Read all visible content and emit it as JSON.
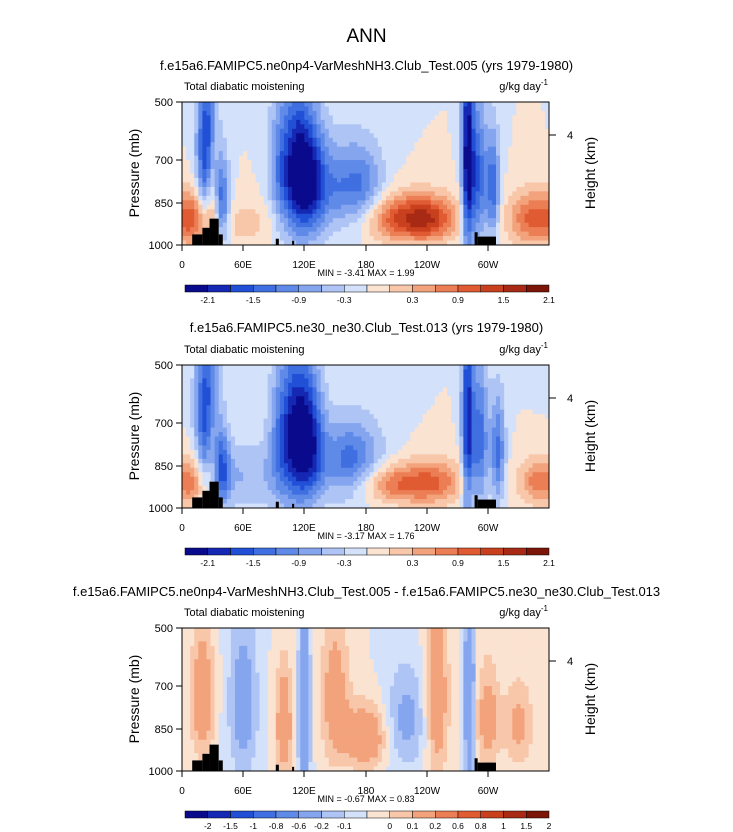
{
  "figure_title": "ANN",
  "chart_data": [
    {
      "type": "heatmap",
      "title": "f.e15a6.FAMIPC5.ne0np4-VarMeshNH3.Club_Test.005 (yrs 1979-1980)",
      "left_label": "Total diabatic moistening",
      "units_base": "g/kg day",
      "units_exp": "-1",
      "ylabel": "Pressure (mb)",
      "ylabel_right": "Height (km)",
      "right_ticks": [
        "4"
      ],
      "y_ticks": [
        "500",
        "700",
        "850",
        "1000"
      ],
      "x_ticks": [
        "0",
        "60E",
        "120E",
        "180",
        "120W",
        "60W"
      ],
      "minmax": "MIN =  -3.41  MAX =  1.99",
      "colorbar_labels": [
        "-2.1",
        "-1.5",
        "-0.9",
        "-0.3",
        "0.3",
        "0.9",
        "1.5",
        "2.1"
      ],
      "colorbar_levels": [
        -2.4,
        -2.1,
        -1.8,
        -1.5,
        -1.2,
        -0.9,
        -0.6,
        -0.3,
        0,
        0.3,
        0.6,
        0.9,
        1.2,
        1.5,
        1.8,
        2.1,
        2.4
      ],
      "xlim": [
        0,
        360
      ],
      "ylim": [
        1000,
        500
      ],
      "features": [
        {
          "lon": 25,
          "p": 650,
          "w": 7,
          "h": 200,
          "v": -2.2
        },
        {
          "lon": 30,
          "p": 780,
          "w": 5,
          "h": 160,
          "v": 1.6
        },
        {
          "lon": 38,
          "p": 820,
          "w": 6,
          "h": 120,
          "v": -1.6
        },
        {
          "lon": 15,
          "p": 880,
          "w": 10,
          "h": 90,
          "v": 0.9
        },
        {
          "lon": 60,
          "p": 900,
          "w": 40,
          "h": 80,
          "v": 0.4
        },
        {
          "lon": 100,
          "p": 700,
          "w": 10,
          "h": 180,
          "v": -1.4
        },
        {
          "lon": 115,
          "p": 700,
          "w": 8,
          "h": 180,
          "v": -1.6
        },
        {
          "lon": 128,
          "p": 720,
          "w": 9,
          "h": 160,
          "v": -1.4
        },
        {
          "lon": 150,
          "p": 760,
          "w": 22,
          "h": 120,
          "v": -1.1
        },
        {
          "lon": 180,
          "p": 760,
          "w": 14,
          "h": 110,
          "v": -0.8
        },
        {
          "lon": 215,
          "p": 880,
          "w": 28,
          "h": 70,
          "v": 1.5
        },
        {
          "lon": 245,
          "p": 880,
          "w": 18,
          "h": 70,
          "v": 1.0
        },
        {
          "lon": 280,
          "p": 650,
          "w": 4,
          "h": 260,
          "v": -2.2
        },
        {
          "lon": 290,
          "p": 720,
          "w": 6,
          "h": 180,
          "v": -1.5
        },
        {
          "lon": 305,
          "p": 760,
          "w": 5,
          "h": 140,
          "v": -1.4
        },
        {
          "lon": 345,
          "p": 880,
          "w": 18,
          "h": 80,
          "v": 1.3
        }
      ],
      "topography": [
        {
          "lon0": 10,
          "lon1": 20,
          "p": 950
        },
        {
          "lon0": 20,
          "lon1": 27,
          "p": 920
        },
        {
          "lon0": 27,
          "lon1": 36,
          "p": 880
        },
        {
          "lon0": 36,
          "lon1": 40,
          "p": 950
        },
        {
          "lon0": 92,
          "lon1": 95,
          "p": 970
        },
        {
          "lon0": 108,
          "lon1": 110,
          "p": 980
        },
        {
          "lon0": 287,
          "lon1": 290,
          "p": 940
        },
        {
          "lon0": 290,
          "lon1": 308,
          "p": 960
        }
      ]
    },
    {
      "type": "heatmap",
      "title": "f.e15a6.FAMIPC5.ne30_ne30.Club_Test.013 (yrs 1979-1980)",
      "left_label": "Total diabatic moistening",
      "units_base": "g/kg day",
      "units_exp": "-1",
      "ylabel": "Pressure (mb)",
      "ylabel_right": "Height (km)",
      "right_ticks": [
        "4"
      ],
      "y_ticks": [
        "500",
        "700",
        "850",
        "1000"
      ],
      "x_ticks": [
        "0",
        "60E",
        "120E",
        "180",
        "120W",
        "60W"
      ],
      "minmax": "MIN =  -3.17  MAX =  1.76",
      "colorbar_labels": [
        "-2.1",
        "-1.5",
        "-0.9",
        "-0.3",
        "0.3",
        "0.9",
        "1.5",
        "2.1"
      ],
      "colorbar_levels": [
        -2.4,
        -2.1,
        -1.8,
        -1.5,
        -1.2,
        -0.9,
        -0.6,
        -0.3,
        0,
        0.3,
        0.6,
        0.9,
        1.2,
        1.5,
        1.8,
        2.1,
        2.4
      ],
      "xlim": [
        0,
        360
      ],
      "ylim": [
        1000,
        500
      ],
      "features": [
        {
          "lon": 25,
          "p": 640,
          "w": 8,
          "h": 200,
          "v": -2.0
        },
        {
          "lon": 30,
          "p": 780,
          "w": 5,
          "h": 160,
          "v": 1.2
        },
        {
          "lon": 38,
          "p": 830,
          "w": 6,
          "h": 110,
          "v": -1.3
        },
        {
          "lon": 15,
          "p": 880,
          "w": 10,
          "h": 90,
          "v": 1.0
        },
        {
          "lon": 60,
          "p": 860,
          "w": 30,
          "h": 100,
          "v": -0.6
        },
        {
          "lon": 100,
          "p": 700,
          "w": 10,
          "h": 180,
          "v": -1.3
        },
        {
          "lon": 115,
          "p": 700,
          "w": 9,
          "h": 180,
          "v": -1.7
        },
        {
          "lon": 128,
          "p": 720,
          "w": 9,
          "h": 160,
          "v": -1.4
        },
        {
          "lon": 165,
          "p": 800,
          "w": 22,
          "h": 110,
          "v": -1.4
        },
        {
          "lon": 210,
          "p": 890,
          "w": 30,
          "h": 60,
          "v": 1.2
        },
        {
          "lon": 250,
          "p": 880,
          "w": 20,
          "h": 70,
          "v": 0.8
        },
        {
          "lon": 280,
          "p": 650,
          "w": 4,
          "h": 260,
          "v": -1.9
        },
        {
          "lon": 292,
          "p": 720,
          "w": 6,
          "h": 180,
          "v": -1.4
        },
        {
          "lon": 310,
          "p": 760,
          "w": 5,
          "h": 140,
          "v": -1.3
        },
        {
          "lon": 350,
          "p": 880,
          "w": 14,
          "h": 70,
          "v": 1.1
        }
      ],
      "topography": [
        {
          "lon0": 10,
          "lon1": 20,
          "p": 950
        },
        {
          "lon0": 20,
          "lon1": 27,
          "p": 920
        },
        {
          "lon0": 27,
          "lon1": 36,
          "p": 880
        },
        {
          "lon0": 36,
          "lon1": 40,
          "p": 950
        },
        {
          "lon0": 92,
          "lon1": 95,
          "p": 970
        },
        {
          "lon0": 108,
          "lon1": 110,
          "p": 980
        },
        {
          "lon0": 287,
          "lon1": 290,
          "p": 940
        },
        {
          "lon0": 290,
          "lon1": 308,
          "p": 960
        }
      ]
    },
    {
      "type": "heatmap",
      "title": "f.e15a6.FAMIPC5.ne0np4-VarMeshNH3.Club_Test.005 - f.e15a6.FAMIPC5.ne30_ne30.Club_Test.013",
      "left_label": "Total diabatic moistening",
      "units_base": "g/kg day",
      "units_exp": "-1",
      "ylabel": "Pressure (mb)",
      "ylabel_right": "Height (km)",
      "right_ticks": [
        "4"
      ],
      "y_ticks": [
        "500",
        "700",
        "850",
        "1000"
      ],
      "x_ticks": [
        "0",
        "60E",
        "120E",
        "180",
        "120W",
        "60W"
      ],
      "minmax": "MIN =  -0.67  MAX =  0.83",
      "colorbar_labels": [
        "-2",
        "-1.5",
        "-1",
        "-0.8",
        "-0.6",
        "-0.2",
        "-0.1",
        "0",
        "0.1",
        "0.2",
        "0.6",
        "0.8",
        "1",
        "1.5",
        "2"
      ],
      "colorbar_levels": [
        -2.5,
        -2,
        -1.5,
        -1,
        -0.8,
        -0.6,
        -0.2,
        -0.1,
        0,
        0.1,
        0.2,
        0.6,
        0.8,
        1,
        1.5,
        2,
        2.5
      ],
      "xlim": [
        0,
        360
      ],
      "ylim": [
        1000,
        500
      ],
      "features": [
        {
          "lon": 20,
          "p": 700,
          "w": 8,
          "h": 160,
          "v": 0.35
        },
        {
          "lon": 60,
          "p": 720,
          "w": 10,
          "h": 200,
          "v": -0.3
        },
        {
          "lon": 100,
          "p": 800,
          "w": 6,
          "h": 160,
          "v": 0.35
        },
        {
          "lon": 120,
          "p": 760,
          "w": 4,
          "h": 220,
          "v": -0.5
        },
        {
          "lon": 150,
          "p": 700,
          "w": 10,
          "h": 180,
          "v": 0.3
        },
        {
          "lon": 180,
          "p": 850,
          "w": 14,
          "h": 90,
          "v": 0.4
        },
        {
          "lon": 220,
          "p": 780,
          "w": 14,
          "h": 140,
          "v": -0.25
        },
        {
          "lon": 250,
          "p": 700,
          "w": 8,
          "h": 220,
          "v": 0.35
        },
        {
          "lon": 282,
          "p": 700,
          "w": 3,
          "h": 260,
          "v": -0.6
        },
        {
          "lon": 300,
          "p": 780,
          "w": 8,
          "h": 140,
          "v": 0.3
        },
        {
          "lon": 330,
          "p": 800,
          "w": 10,
          "h": 120,
          "v": 0.25
        }
      ],
      "topography": [
        {
          "lon0": 10,
          "lon1": 20,
          "p": 950
        },
        {
          "lon0": 20,
          "lon1": 27,
          "p": 920
        },
        {
          "lon0": 27,
          "lon1": 36,
          "p": 880
        },
        {
          "lon0": 36,
          "lon1": 40,
          "p": 950
        },
        {
          "lon0": 92,
          "lon1": 95,
          "p": 970
        },
        {
          "lon0": 108,
          "lon1": 110,
          "p": 980
        },
        {
          "lon0": 287,
          "lon1": 290,
          "p": 940
        },
        {
          "lon0": 290,
          "lon1": 308,
          "p": 960
        }
      ]
    }
  ],
  "colors": {
    "palette": [
      "#0a0a8c",
      "#1428b4",
      "#2150d6",
      "#3f6fe0",
      "#5f8ae8",
      "#85a6ef",
      "#aec4f5",
      "#d4e1fa",
      "#fbe3d2",
      "#f8c7aa",
      "#f3a37c",
      "#ec7e55",
      "#e05a32",
      "#c8401e",
      "#a82a14",
      "#7a1508"
    ]
  }
}
